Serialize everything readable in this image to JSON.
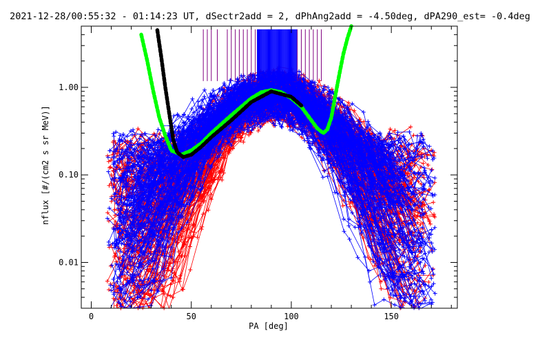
{
  "chart_data": {
    "type": "line",
    "title": "2021-12-28/00:55:32 - 01:14:23 UT, dSectr2add = 2, dPhAng2add = -4.50deg, dPA290_est=  -0.4deg",
    "xlabel": "PA [deg]",
    "ylabel": "nflux [#/(cm2 s sr MeV)]",
    "xlim": [
      -5,
      183
    ],
    "ylim": [
      0.003,
      5.0
    ],
    "log_y": true,
    "grid": false,
    "x_ticks": [
      {
        "v": 0,
        "label": "0"
      },
      {
        "v": 50,
        "label": "50"
      },
      {
        "v": 100,
        "label": "100"
      },
      {
        "v": 150,
        "label": "150"
      }
    ],
    "y_ticks": [
      {
        "v": 0.01,
        "label": "0.01"
      },
      {
        "v": 0.1,
        "label": "0.10"
      },
      {
        "v": 1.0,
        "label": "1.00"
      }
    ],
    "colors": {
      "red": "#ff0000",
      "blue": "#0000ff",
      "green": "#00ff00",
      "black": "#000000",
      "purple": "#800080"
    },
    "series": [
      {
        "color": "green",
        "style": "thick-dashed",
        "x": [
          25,
          28,
          31,
          34,
          37,
          40,
          45,
          50,
          55,
          60,
          65,
          70,
          75,
          80,
          85,
          90,
          95,
          100,
          105,
          110,
          113,
          116,
          118,
          120,
          122,
          124,
          126,
          128,
          130
        ],
        "y": [
          4.0,
          2.0,
          0.9,
          0.45,
          0.28,
          0.19,
          0.17,
          0.19,
          0.23,
          0.3,
          0.38,
          0.48,
          0.6,
          0.75,
          0.88,
          0.93,
          0.88,
          0.75,
          0.6,
          0.42,
          0.34,
          0.3,
          0.33,
          0.45,
          0.8,
          1.4,
          2.4,
          3.6,
          5.0
        ]
      },
      {
        "color": "black",
        "style": "thick-dashed",
        "x": [
          33,
          35,
          37,
          39,
          41,
          43,
          46,
          50,
          55,
          60,
          70,
          80,
          90,
          100,
          105
        ],
        "y": [
          4.5,
          2.2,
          1.0,
          0.5,
          0.25,
          0.18,
          0.16,
          0.17,
          0.21,
          0.27,
          0.42,
          0.68,
          0.9,
          0.78,
          0.62
        ]
      }
    ],
    "scatter_groups": [
      {
        "color": "red",
        "peak": 92,
        "left_fall": 30,
        "right_fall": 31,
        "count": 150
      },
      {
        "color": "blue",
        "peak": 90,
        "left_fall": 34,
        "right_fall": 33,
        "count": 150
      }
    ],
    "vertical_markers": {
      "color_primary": "blue",
      "color_secondary": "purple",
      "y_top": 4.6,
      "y_bottom": 1.18,
      "x_values_purple": [
        56,
        58,
        60,
        63,
        68,
        70,
        72,
        74,
        76,
        78,
        80,
        82,
        103,
        105,
        107,
        109,
        111,
        113,
        115
      ],
      "x_values_blue": [
        83,
        84,
        85,
        86,
        87,
        88,
        89,
        90,
        91,
        92,
        93,
        94,
        95,
        96,
        97,
        98,
        99,
        100,
        101,
        102
      ]
    }
  }
}
